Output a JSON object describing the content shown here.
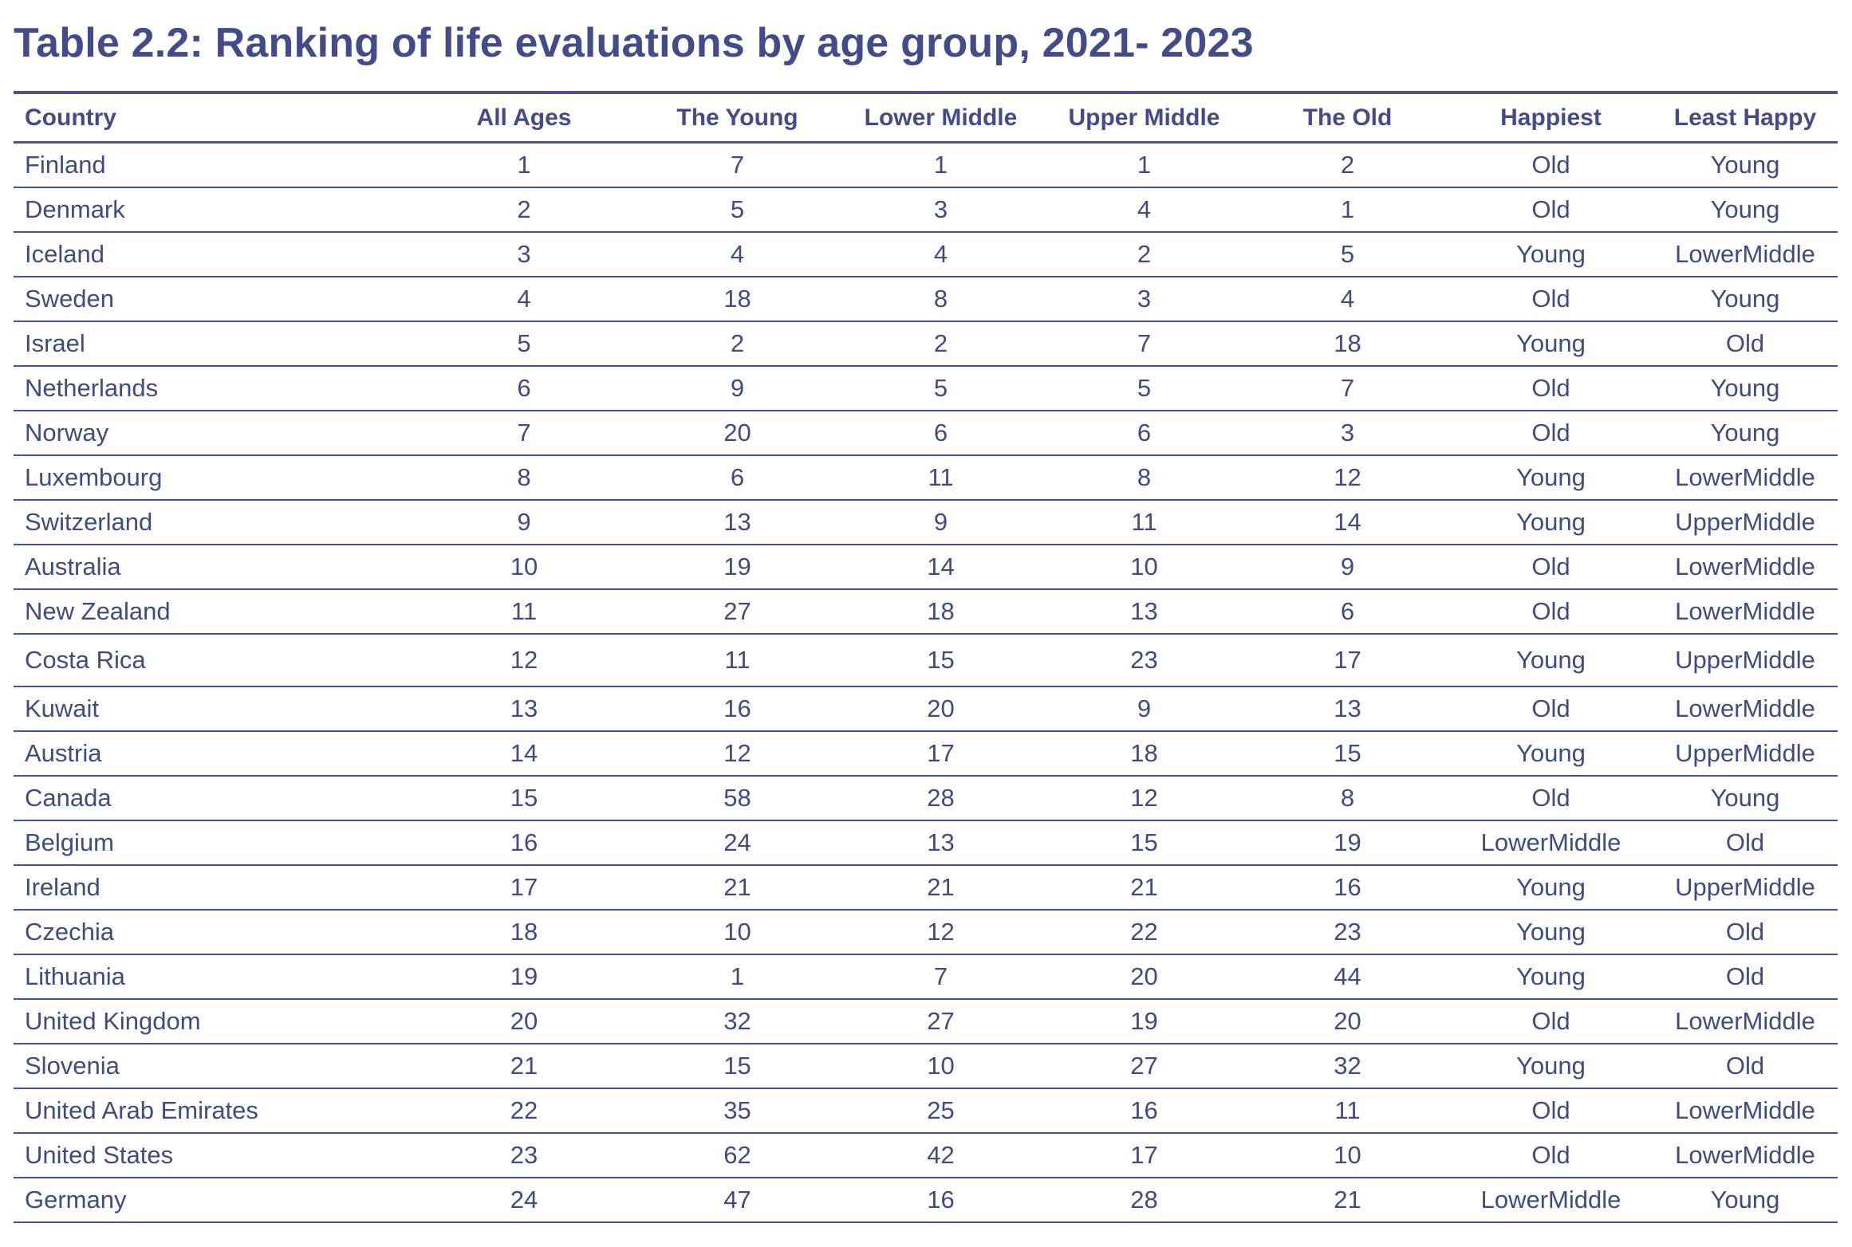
{
  "title": "Table 2.2: Ranking of life evaluations by age group, 2021- 2023",
  "columns": [
    "Country",
    "All Ages",
    "The Young",
    "Lower Middle",
    "Upper Middle",
    "The Old",
    "Happiest",
    "Least Happy"
  ],
  "rows": [
    [
      "Finland",
      "1",
      "7",
      "1",
      "1",
      "2",
      "Old",
      "Young"
    ],
    [
      "Denmark",
      "2",
      "5",
      "3",
      "4",
      "1",
      "Old",
      "Young"
    ],
    [
      "Iceland",
      "3",
      "4",
      "4",
      "2",
      "5",
      "Young",
      "LowerMiddle"
    ],
    [
      "Sweden",
      "4",
      "18",
      "8",
      "3",
      "4",
      "Old",
      "Young"
    ],
    [
      "Israel",
      "5",
      "2",
      "2",
      "7",
      "18",
      "Young",
      "Old"
    ],
    [
      "Netherlands",
      "6",
      "9",
      "5",
      "5",
      "7",
      "Old",
      "Young"
    ],
    [
      "Norway",
      "7",
      "20",
      "6",
      "6",
      "3",
      "Old",
      "Young"
    ],
    [
      "Luxembourg",
      "8",
      "6",
      "11",
      "8",
      "12",
      "Young",
      "LowerMiddle"
    ],
    [
      "Switzerland",
      "9",
      "13",
      "9",
      "11",
      "14",
      "Young",
      "UpperMiddle"
    ],
    [
      "Australia",
      "10",
      "19",
      "14",
      "10",
      "9",
      "Old",
      "LowerMiddle"
    ],
    [
      "New Zealand",
      "11",
      "27",
      "18",
      "13",
      "6",
      "Old",
      "LowerMiddle"
    ],
    [
      "Costa Rica",
      "12",
      "11",
      "15",
      "23",
      "17",
      "Young",
      "UpperMiddle"
    ],
    [
      "Kuwait",
      "13",
      "16",
      "20",
      "9",
      "13",
      "Old",
      "LowerMiddle"
    ],
    [
      "Austria",
      "14",
      "12",
      "17",
      "18",
      "15",
      "Young",
      "UpperMiddle"
    ],
    [
      "Canada",
      "15",
      "58",
      "28",
      "12",
      "8",
      "Old",
      "Young"
    ],
    [
      "Belgium",
      "16",
      "24",
      "13",
      "15",
      "19",
      "LowerMiddle",
      "Old"
    ],
    [
      "Ireland",
      "17",
      "21",
      "21",
      "21",
      "16",
      "Young",
      "UpperMiddle"
    ],
    [
      "Czechia",
      "18",
      "10",
      "12",
      "22",
      "23",
      "Young",
      "Old"
    ],
    [
      "Lithuania",
      "19",
      "1",
      "7",
      "20",
      "44",
      "Young",
      "Old"
    ],
    [
      "United Kingdom",
      "20",
      "32",
      "27",
      "19",
      "20",
      "Old",
      "LowerMiddle"
    ],
    [
      "Slovenia",
      "21",
      "15",
      "10",
      "27",
      "32",
      "Young",
      "Old"
    ],
    [
      "United Arab Emirates",
      "22",
      "35",
      "25",
      "16",
      "11",
      "Old",
      "LowerMiddle"
    ],
    [
      "United States",
      "23",
      "62",
      "42",
      "17",
      "10",
      "Old",
      "LowerMiddle"
    ],
    [
      "Germany",
      "24",
      "47",
      "16",
      "28",
      "21",
      "LowerMiddle",
      "Young"
    ]
  ],
  "colors": {
    "text": "#404b82",
    "rule": "#4a5390"
  }
}
